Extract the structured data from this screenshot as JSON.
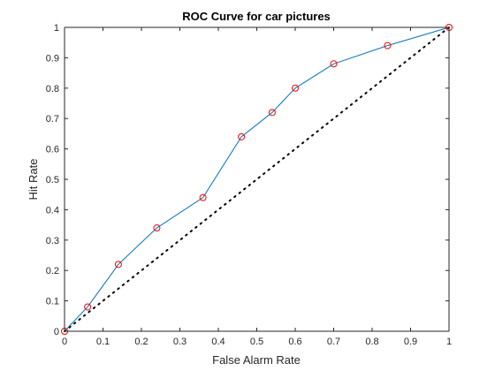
{
  "chart_data": {
    "type": "line",
    "title": "ROC Curve for car pictures",
    "xlabel": "False Alarm Rate",
    "ylabel": "Hit Rate",
    "xlim": [
      0,
      1
    ],
    "ylim": [
      0,
      1
    ],
    "xticks": [
      "0",
      "0.1",
      "0.2",
      "0.3",
      "0.4",
      "0.5",
      "0.6",
      "0.7",
      "0.8",
      "0.9",
      "1"
    ],
    "yticks": [
      "0",
      "0.1",
      "0.2",
      "0.3",
      "0.4",
      "0.5",
      "0.6",
      "0.7",
      "0.8",
      "0.9",
      "1"
    ],
    "grid": false,
    "series": [
      {
        "x": [
          0,
          0.06,
          0.14,
          0.24,
          0.36,
          0.46,
          0.54,
          0.6,
          0.7,
          0.84,
          1
        ],
        "y": [
          0,
          0.08,
          0.22,
          0.34,
          0.44,
          0.64,
          0.72,
          0.8,
          0.88,
          0.94,
          1
        ],
        "line_color": "#0072bd",
        "marker": "circle",
        "marker_color": "#ff0000"
      },
      {
        "x": [
          0,
          1
        ],
        "y": [
          0,
          1
        ],
        "line_style": "dotted",
        "line_color": "#000000"
      }
    ]
  }
}
